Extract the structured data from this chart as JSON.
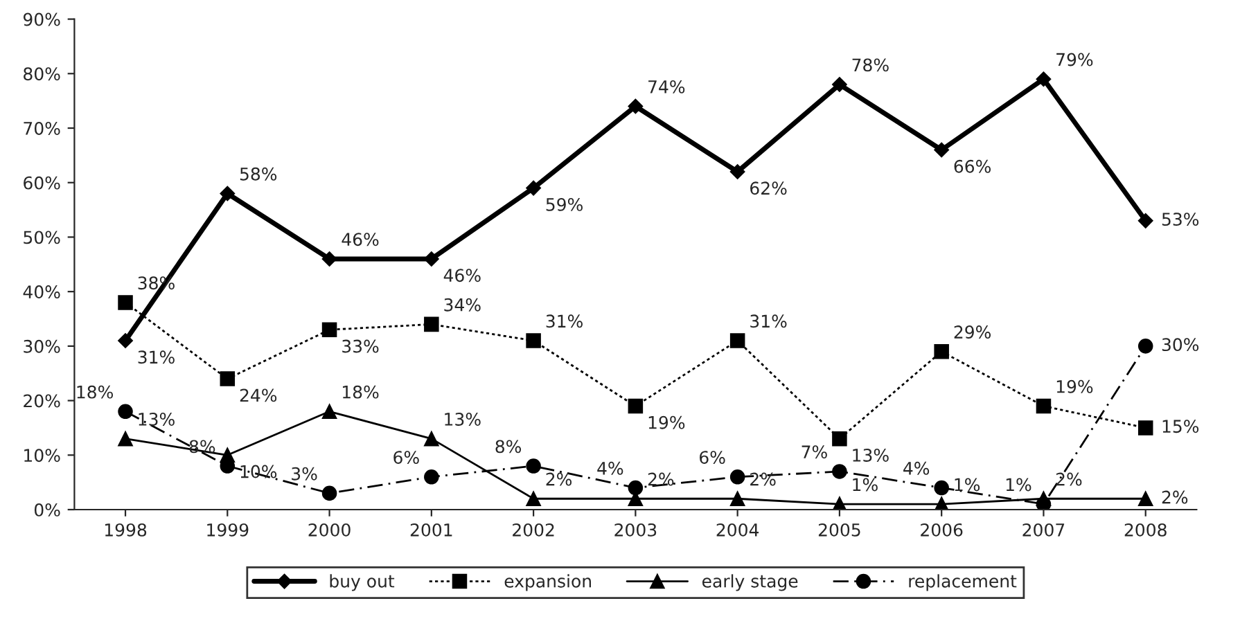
{
  "chart_data": {
    "type": "line",
    "categories": [
      "1998",
      "1999",
      "2000",
      "2001",
      "2002",
      "2003",
      "2004",
      "2005",
      "2006",
      "2007",
      "2008"
    ],
    "series": [
      {
        "name": "buy out",
        "color": "#000000",
        "marker": "diamond",
        "line_style": "solid",
        "values": [
          31,
          58,
          46,
          46,
          59,
          74,
          62,
          78,
          66,
          79,
          53
        ],
        "value_labels": [
          "31%",
          "58%",
          "46%",
          "46%",
          "59%",
          "74%",
          "62%",
          "78%",
          "66%",
          "79%",
          "53%"
        ]
      },
      {
        "name": "expansion",
        "color": "#000000",
        "marker": "square",
        "line_style": "dotted",
        "values": [
          38,
          24,
          33,
          34,
          31,
          19,
          31,
          13,
          29,
          19,
          15
        ],
        "value_labels": [
          "38%",
          "24%",
          "33%",
          "34%",
          "31%",
          "19%",
          "31%",
          "13%",
          "29%",
          "19%",
          "15%"
        ]
      },
      {
        "name": "early stage",
        "color": "#000000",
        "marker": "triangle",
        "line_style": "solid",
        "values": [
          13,
          10,
          18,
          13,
          2,
          2,
          2,
          1,
          1,
          2,
          2
        ],
        "value_labels": [
          "13%",
          "10%",
          "18%",
          "13%",
          "2%",
          "2%",
          "2%",
          "1%",
          "1%",
          "2%",
          "2%"
        ]
      },
      {
        "name": "replacement",
        "color": "#000000",
        "marker": "circle",
        "line_style": "dashed",
        "values": [
          18,
          8,
          3,
          6,
          8,
          4,
          6,
          7,
          4,
          1,
          30
        ],
        "value_labels": [
          "18%",
          "8%",
          "3%",
          "6%",
          "8%",
          "4%",
          "6%",
          "7%",
          "4%",
          "1%",
          "30%"
        ]
      }
    ],
    "ylim": [
      0,
      90
    ],
    "yticks": [
      {
        "value": 0,
        "label": "0%"
      },
      {
        "value": 10,
        "label": "10%"
      },
      {
        "value": 20,
        "label": "20%"
      },
      {
        "value": 30,
        "label": "30%"
      },
      {
        "value": 40,
        "label": "40%"
      },
      {
        "value": 50,
        "label": "50%"
      },
      {
        "value": 60,
        "label": "60%"
      },
      {
        "value": 70,
        "label": "70%"
      },
      {
        "value": 80,
        "label": "80%"
      },
      {
        "value": 90,
        "label": "90%"
      }
    ],
    "grid": false,
    "legend": "bottom"
  }
}
